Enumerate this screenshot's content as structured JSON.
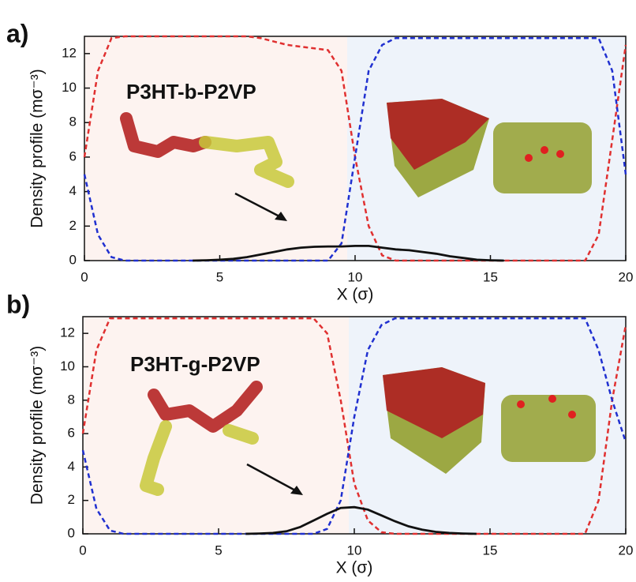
{
  "chart_data": [
    {
      "type": "line",
      "panel_label": "a)",
      "annotation": "P3HT-b-P2VP",
      "x_label": "X (σ)",
      "y_label": "Density profile (mσ⁻³)",
      "x": [
        0,
        0.5,
        1,
        1.5,
        2,
        2.5,
        3,
        3.5,
        4,
        4.5,
        5,
        5.5,
        6,
        6.5,
        7,
        7.5,
        8,
        8.5,
        9,
        9.5,
        10,
        10.5,
        11,
        11.5,
        12,
        12.5,
        13,
        13.5,
        14,
        14.5,
        15,
        15.5,
        16,
        16.5,
        17,
        17.5,
        18,
        18.5,
        19,
        19.5,
        20
      ],
      "series": [
        {
          "color": "#e03030",
          "dashed": true,
          "values": [
            6,
            11,
            12.9,
            13,
            13,
            13,
            13,
            13,
            13,
            13,
            13,
            13,
            13,
            12.9,
            12.7,
            12.5,
            12.4,
            12.3,
            12.2,
            11,
            6,
            2,
            0.3,
            0,
            0,
            0,
            0,
            0,
            0,
            0,
            0,
            0,
            0,
            0,
            0,
            0,
            0,
            0,
            1.5,
            7,
            12.5
          ]
        },
        {
          "color": "#2030d0",
          "dashed": true,
          "values": [
            5,
            1.5,
            0.2,
            0,
            0,
            0,
            0,
            0,
            0,
            0,
            0,
            0,
            0,
            0,
            0,
            0,
            0,
            0,
            0,
            1,
            6,
            11,
            12.5,
            12.9,
            12.9,
            12.9,
            12.9,
            12.9,
            12.9,
            12.9,
            12.9,
            12.9,
            12.9,
            12.9,
            12.9,
            12.9,
            12.9,
            12.9,
            12.9,
            11,
            5
          ]
        },
        {
          "color": "#111111",
          "dashed": false,
          "values": [
            null,
            null,
            null,
            null,
            null,
            null,
            null,
            null,
            0,
            0.02,
            0.05,
            0.1,
            0.2,
            0.35,
            0.5,
            0.65,
            0.75,
            0.8,
            0.82,
            0.82,
            0.85,
            0.85,
            0.75,
            0.65,
            0.6,
            0.5,
            0.4,
            0.25,
            0.15,
            0.05,
            0.02,
            0,
            null,
            null,
            null,
            null,
            null,
            null,
            null,
            null,
            null
          ]
        }
      ],
      "xlim": [
        0,
        20
      ],
      "xticks": [
        0,
        5,
        10,
        15,
        20
      ],
      "ylim": [
        0,
        13
      ],
      "yticks": [
        0,
        2,
        4,
        6,
        8,
        10,
        12
      ]
    },
    {
      "type": "line",
      "panel_label": "b)",
      "annotation": "P3HT-g-P2VP",
      "x_label": "X (σ)",
      "y_label": "Density profile (mσ⁻³)",
      "x": [
        0,
        0.5,
        1,
        1.5,
        2,
        2.5,
        3,
        3.5,
        4,
        4.5,
        5,
        5.5,
        6,
        6.5,
        7,
        7.5,
        8,
        8.5,
        9,
        9.5,
        10,
        10.5,
        11,
        11.5,
        12,
        12.5,
        13,
        13.5,
        14,
        14.5,
        15,
        15.5,
        16,
        16.5,
        17,
        17.5,
        18,
        18.5,
        19,
        19.5,
        20
      ],
      "series": [
        {
          "color": "#e03030",
          "dashed": true,
          "values": [
            6,
            11,
            12.9,
            12.9,
            12.9,
            12.9,
            12.9,
            12.9,
            12.9,
            12.9,
            12.9,
            12.9,
            12.9,
            12.9,
            12.9,
            12.9,
            12.9,
            12.9,
            12,
            8,
            3,
            0.8,
            0.1,
            0,
            0,
            0,
            0,
            0,
            0,
            0,
            0,
            0,
            0,
            0,
            0,
            0,
            0,
            0,
            2,
            8,
            12.5
          ]
        },
        {
          "color": "#2030d0",
          "dashed": true,
          "values": [
            5,
            1.5,
            0.2,
            0,
            0,
            0,
            0,
            0,
            0,
            0,
            0,
            0,
            0,
            0,
            0,
            0,
            0,
            0,
            0.3,
            2,
            7,
            11,
            12.5,
            12.9,
            12.9,
            12.9,
            12.9,
            12.9,
            12.9,
            12.9,
            12.9,
            12.9,
            12.9,
            12.9,
            12.9,
            12.9,
            12.9,
            12.9,
            11,
            8,
            5.5
          ]
        },
        {
          "color": "#111111",
          "dashed": false,
          "values": [
            null,
            null,
            null,
            null,
            null,
            null,
            null,
            null,
            null,
            null,
            null,
            null,
            0,
            0.02,
            0.05,
            0.15,
            0.4,
            0.8,
            1.2,
            1.55,
            1.6,
            1.45,
            1.1,
            0.75,
            0.45,
            0.25,
            0.12,
            0.05,
            0.02,
            0,
            null,
            null,
            null,
            null,
            null,
            null,
            null,
            null,
            null,
            null,
            null
          ]
        }
      ],
      "xlim": [
        0,
        20
      ],
      "xticks": [
        0,
        5,
        10,
        15,
        20
      ],
      "ylim": [
        0,
        13
      ],
      "yticks": [
        0,
        2,
        4,
        6,
        8,
        10,
        12
      ]
    }
  ]
}
